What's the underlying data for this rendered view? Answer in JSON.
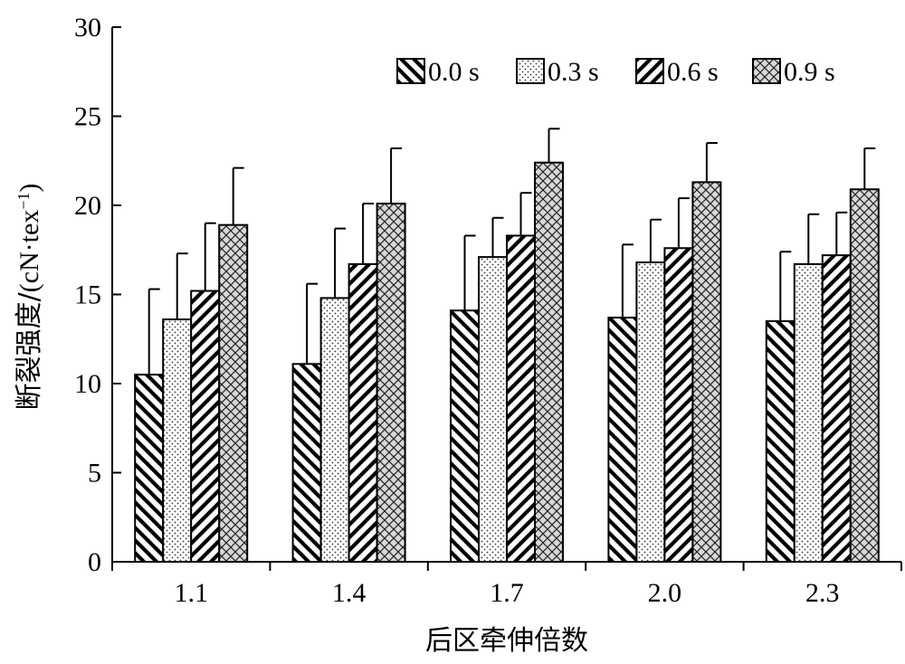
{
  "chart_data": {
    "type": "bar",
    "xlabel": "后区牵伸倍数",
    "ylabel_text": "断裂强度/",
    "ylabel_unit_main": "(cN·tex",
    "ylabel_unit_sup": "−1",
    "ylabel_unit_close": ")",
    "categories": [
      "1.1",
      "1.4",
      "1.7",
      "2.0",
      "2.3"
    ],
    "ylim": [
      0,
      30
    ],
    "yticks": [
      "0",
      "5",
      "10",
      "15",
      "20",
      "25",
      "30"
    ],
    "grid": false,
    "legend_position": "top-right",
    "series": [
      {
        "name": "0.0 s",
        "pattern": "diagonal-backslash",
        "values": [
          10.5,
          11.1,
          14.1,
          13.7,
          13.5
        ],
        "errors": [
          4.8,
          4.5,
          4.2,
          4.1,
          3.9
        ]
      },
      {
        "name": "0.3 s",
        "pattern": "dots",
        "values": [
          13.6,
          14.8,
          17.1,
          16.8,
          16.7
        ],
        "errors": [
          3.7,
          3.9,
          2.2,
          2.4,
          2.8
        ]
      },
      {
        "name": "0.6 s",
        "pattern": "diagonal-slash",
        "values": [
          15.2,
          16.7,
          18.3,
          17.6,
          17.2
        ],
        "errors": [
          3.8,
          3.4,
          2.4,
          2.8,
          2.4
        ]
      },
      {
        "name": "0.9 s",
        "pattern": "crosshatch",
        "values": [
          18.9,
          20.1,
          22.4,
          21.3,
          20.9
        ],
        "errors": [
          3.2,
          3.1,
          1.9,
          2.2,
          2.3
        ]
      }
    ]
  }
}
